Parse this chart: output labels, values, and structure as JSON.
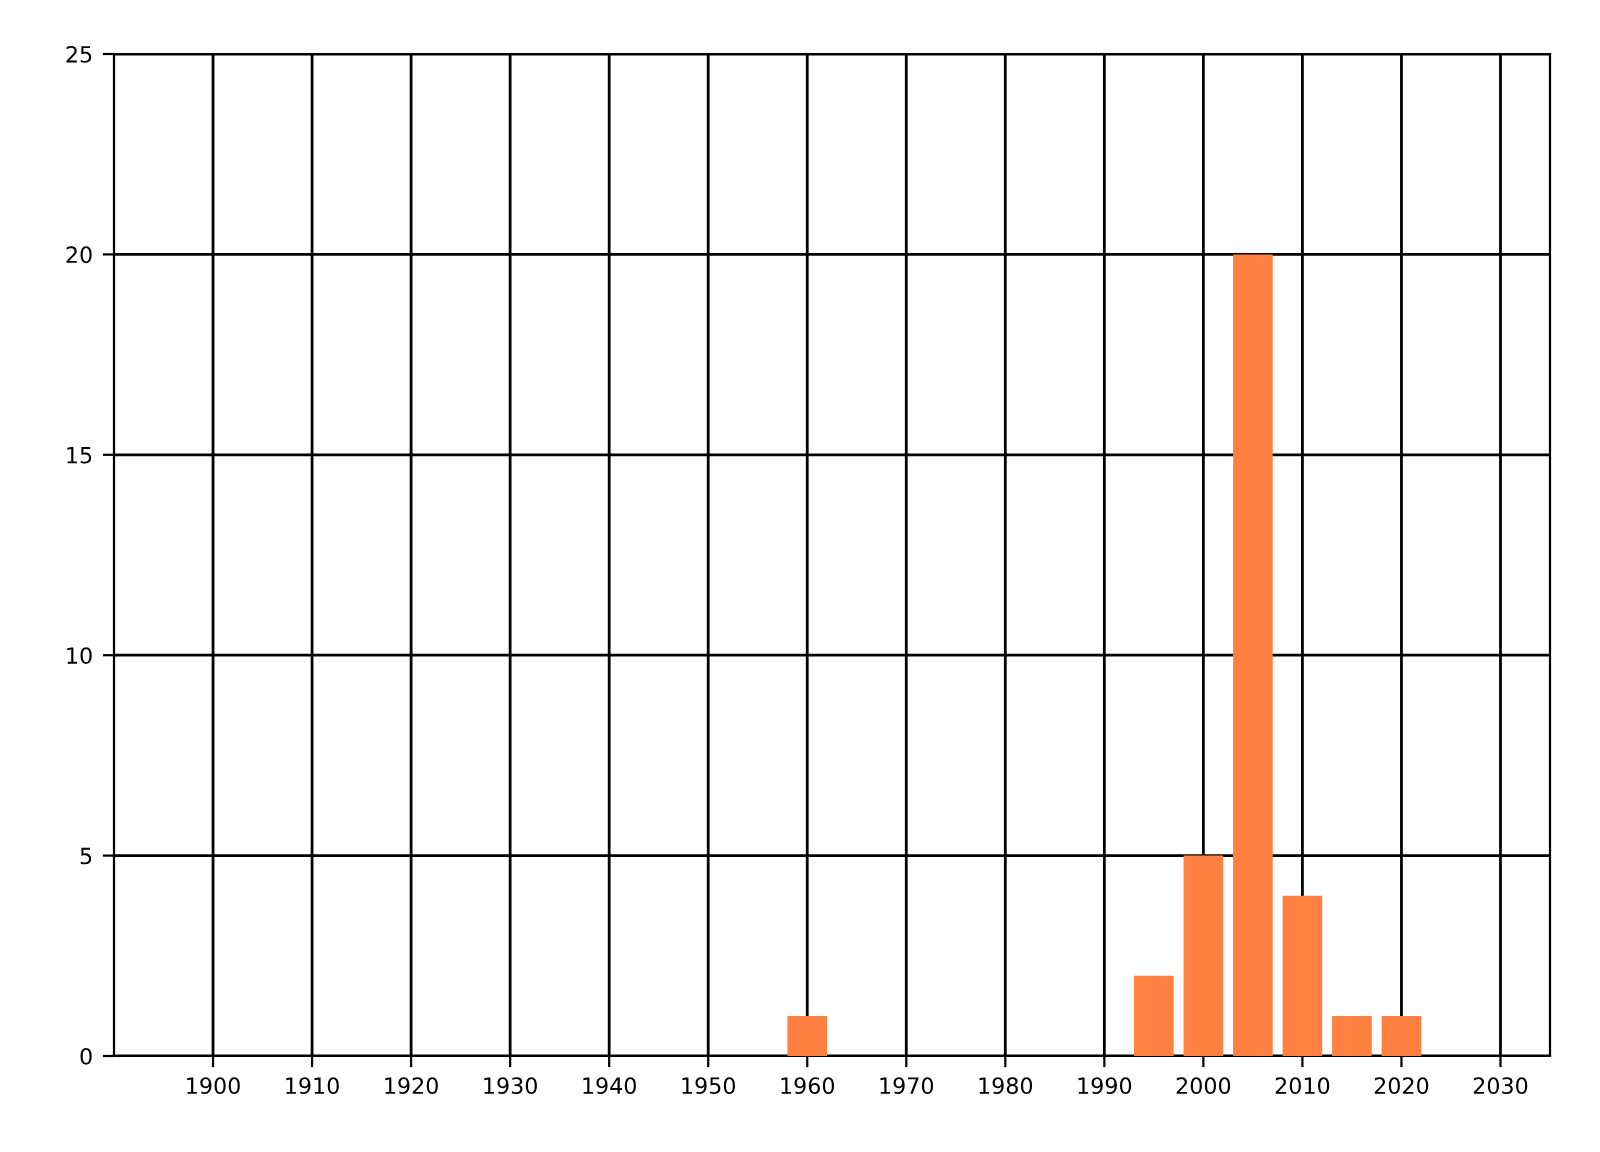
{
  "chart_data": {
    "type": "bar",
    "x": [
      1960,
      1995,
      2000,
      2005,
      2010,
      2015,
      2020
    ],
    "values": [
      1,
      2,
      5,
      20,
      4,
      1,
      1
    ],
    "color": "#ff8040",
    "xlim": [
      1890,
      2035
    ],
    "xticks": [
      1900,
      1910,
      1920,
      1930,
      1940,
      1950,
      1960,
      1970,
      1980,
      1990,
      2000,
      2010,
      2020,
      2030
    ],
    "ylim": [
      0,
      25
    ],
    "yticks": [
      0,
      5,
      10,
      15,
      20,
      25
    ],
    "grid": true
  }
}
